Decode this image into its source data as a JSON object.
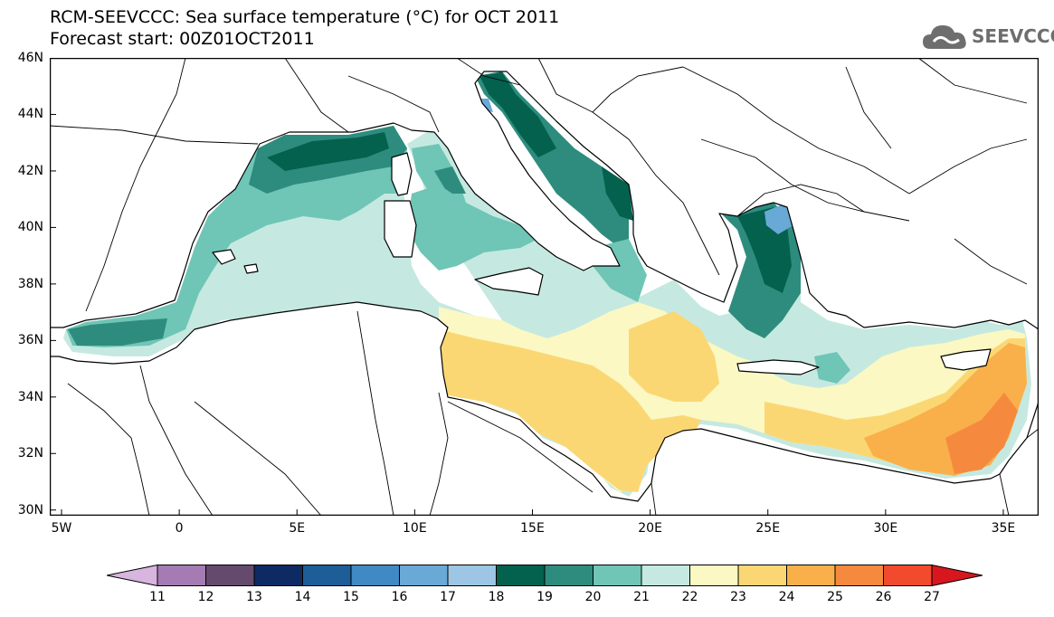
{
  "title": {
    "line1": "RCM-SEEVCCC: Sea surface temperature (°C) for OCT 2011",
    "line2": "Forecast start: 00Z01OCT2011"
  },
  "logo": {
    "text": "SEEVCCC",
    "color": "#6e6e6e"
  },
  "map": {
    "region": "Mediterranean Sea",
    "lon_range": [
      -5.5,
      36.5
    ],
    "lat_range": [
      29.8,
      46
    ],
    "lat_ticks": [
      "46N",
      "44N",
      "42N",
      "40N",
      "38N",
      "36N",
      "34N",
      "32N",
      "30N"
    ],
    "lat_values": [
      46,
      44,
      42,
      40,
      38,
      36,
      34,
      32,
      30
    ],
    "lon_ticks": [
      "5W",
      "0",
      "5E",
      "10E",
      "15E",
      "20E",
      "25E",
      "30E",
      "35E"
    ],
    "lon_values": [
      -5,
      0,
      5,
      10,
      15,
      20,
      25,
      30,
      35
    ],
    "land_color": "#ffffff",
    "border_color": "#000000"
  },
  "colorbar": {
    "labels": [
      "11",
      "12",
      "13",
      "14",
      "15",
      "16",
      "17",
      "18",
      "19",
      "20",
      "21",
      "22",
      "23",
      "24",
      "25",
      "26",
      "27"
    ],
    "colors": [
      "#d7b5de",
      "#a47bb2",
      "#664a6e",
      "#0e2a63",
      "#1d5e98",
      "#3f8ac4",
      "#69a9d6",
      "#9cc6e3",
      "#03614e",
      "#2e8c7e",
      "#6fc5b6",
      "#c5e9e0",
      "#fbf8c3",
      "#fbd774",
      "#f9b04a",
      "#f58a3e",
      "#f14a2c",
      "#d8161e"
    ]
  }
}
